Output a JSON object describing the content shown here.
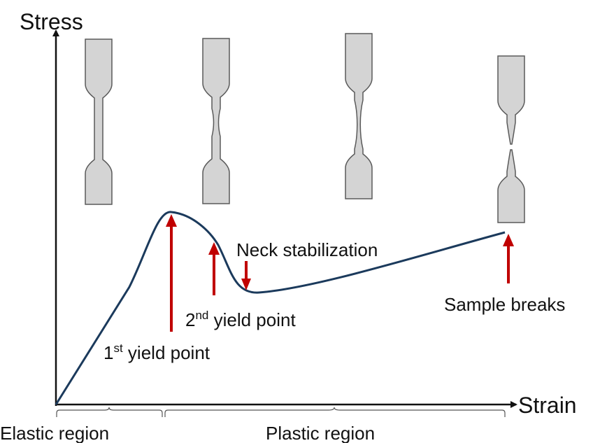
{
  "axes": {
    "y_label": "Stress",
    "x_label": "Strain"
  },
  "regions": {
    "elastic": "Elastic region",
    "plastic": "Plastic region"
  },
  "annotations": {
    "first_yield": {
      "number": "1",
      "superscript": "st",
      "text": " yield point"
    },
    "second_yield": {
      "number": "2",
      "superscript": "nd",
      "text": " yield point"
    },
    "neck": "Neck stabilization",
    "break": "Sample breaks"
  }
}
